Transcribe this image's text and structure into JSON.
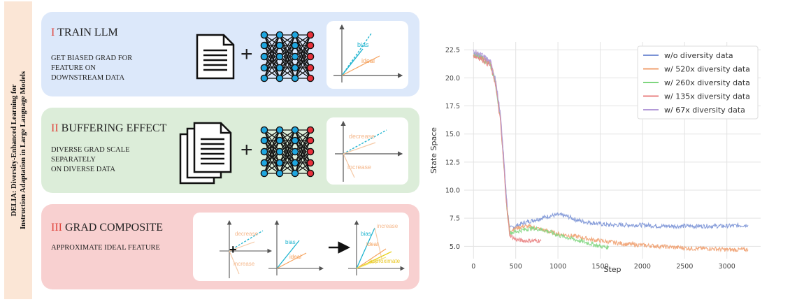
{
  "side_title": {
    "line1": "DELIA: Diversity-Enhanced Learning for",
    "line2": "Instruction Adaptation in Large Language Models"
  },
  "panels": [
    {
      "numeral": "I",
      "title": "TRAIN LLM",
      "description": [
        "GET BIASED GRAD FOR",
        "FEATURE ON",
        "DOWNSTREAM DATA"
      ],
      "plot_labels": {
        "bias": "bias",
        "ideal": "ideal"
      }
    },
    {
      "numeral": "II",
      "title": "BUFFERING EFFECT",
      "description": [
        "DIVERSE GRAD SCALE",
        "SEPARATELY",
        "ON DIVERSE DATA"
      ],
      "plot_labels": {
        "decrease": "decrease",
        "increase": "increase"
      }
    },
    {
      "numeral": "III",
      "title": "GRAD COMPOSITE",
      "description": [
        "APPROXIMATE IDEAL FEATURE"
      ],
      "plot_labels": {
        "decrease": "decrease",
        "increase": "increase",
        "bias": "bias",
        "ideal": "ideal",
        "increase2": "increase",
        "approximate": "approximate"
      }
    }
  ],
  "colors": {
    "bias": "#22b5d0",
    "ideal": "#f5a15c",
    "approximate": "#e8d21f",
    "numeral": "#e0443c",
    "node_blue": "#1fa7e0",
    "node_red": "#e8323c"
  },
  "icons": [
    "document-icon",
    "stacked-documents-icon",
    "neural-network-icon",
    "plus-icon",
    "arrow-right-icon"
  ],
  "chart_data": {
    "type": "line",
    "title": "",
    "xlabel": "Step",
    "ylabel": "State Space",
    "xlim": [
      -110,
      3400
    ],
    "ylim": [
      3.9,
      23.2
    ],
    "xticks": [
      0,
      500,
      1000,
      1500,
      2000,
      2500,
      3000
    ],
    "yticks": [
      5.0,
      7.5,
      10.0,
      12.5,
      15.0,
      17.5,
      20.0,
      22.5
    ],
    "xtick_labels": [
      "0",
      "500",
      "1000",
      "1500",
      "2000",
      "2500",
      "3000"
    ],
    "ytick_labels": [
      "5.0",
      "7.5",
      "10.0",
      "12.5",
      "15.0",
      "17.5",
      "20.0",
      "22.5"
    ],
    "grid": true,
    "legend_position": "top-right",
    "series": [
      {
        "name": "w/o diversity data",
        "color": "#7b93d6",
        "x": [
          0,
          100,
          200,
          260,
          320,
          360,
          400,
          430,
          500,
          600,
          700,
          800,
          900,
          1000,
          1100,
          1200,
          1300,
          1400,
          1500,
          1600,
          1700,
          1800,
          2000,
          2200,
          2400,
          2600,
          2800,
          3000,
          3250
        ],
        "y": [
          22.2,
          21.9,
          21.3,
          19.8,
          16.5,
          12.5,
          8.3,
          6.6,
          6.8,
          7.1,
          7.3,
          7.5,
          7.7,
          7.8,
          7.7,
          7.4,
          7.2,
          7.1,
          7.0,
          6.9,
          6.9,
          6.9,
          6.9,
          6.8,
          6.8,
          6.8,
          6.8,
          6.8,
          6.9
        ]
      },
      {
        "name": "w/ 520x diversity data",
        "color": "#f0a070",
        "x": [
          0,
          100,
          200,
          260,
          320,
          360,
          400,
          430,
          500,
          600,
          700,
          800,
          1000,
          1200,
          1400,
          1600,
          1800,
          2000,
          2200,
          2400,
          2600,
          2800,
          3000,
          3250
        ],
        "y": [
          22.1,
          21.8,
          21.2,
          19.7,
          16.3,
          12.3,
          8.1,
          6.4,
          6.6,
          6.8,
          6.7,
          6.5,
          6.1,
          5.9,
          5.6,
          5.4,
          5.2,
          5.1,
          5.0,
          4.9,
          4.8,
          4.8,
          4.7,
          4.7
        ]
      },
      {
        "name": "w/ 260x diversity data",
        "color": "#7fd67f",
        "x": [
          0,
          100,
          200,
          260,
          320,
          360,
          400,
          430,
          500,
          600,
          700,
          800,
          900,
          1000,
          1100,
          1200,
          1300,
          1400,
          1500,
          1600
        ],
        "y": [
          22.1,
          21.8,
          21.2,
          19.6,
          16.2,
          12.2,
          8.0,
          6.2,
          6.3,
          6.5,
          6.6,
          6.5,
          6.3,
          6.0,
          5.8,
          5.6,
          5.4,
          5.2,
          5.0,
          4.9
        ]
      },
      {
        "name": "w/ 135x diversity data",
        "color": "#e98383",
        "x": [
          0,
          100,
          200,
          260,
          320,
          360,
          400,
          430,
          500,
          600,
          700,
          800
        ],
        "y": [
          22.0,
          21.7,
          21.1,
          19.5,
          16.0,
          12.0,
          7.9,
          6.0,
          5.6,
          5.5,
          5.5,
          5.5
        ]
      },
      {
        "name": "w/ 67x diversity data",
        "color": "#b39ad8",
        "x": [
          0,
          100,
          200,
          260,
          320,
          360,
          400
        ],
        "y": [
          22.3,
          22.0,
          21.4,
          19.9,
          16.6,
          12.6,
          8.5
        ]
      }
    ]
  }
}
